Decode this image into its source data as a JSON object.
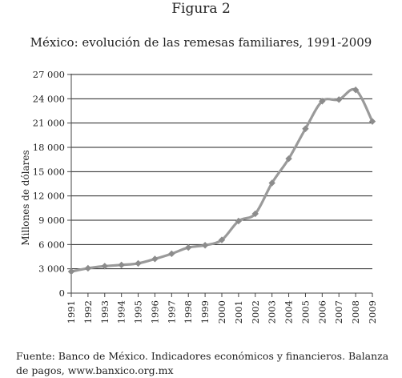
{
  "figure_label": "Figura 2",
  "source": {
    "text": "Fuente: Banco de México. Indicadores económicos y financieros. Balanza de pagos,",
    "url": "www.banxico.org.mx"
  },
  "chart_data": {
    "type": "line",
    "title": "México: evolución de las remesas familiares, 1991-2009",
    "xlabel": "",
    "ylabel": "Millones de dólares",
    "x": [
      "1991",
      "1992",
      "1993",
      "1994",
      "1995",
      "1996",
      "1997",
      "1998",
      "1999",
      "2000",
      "2001",
      "2002",
      "2003",
      "2004",
      "2005",
      "2006",
      "2007",
      "2008",
      "2009"
    ],
    "y_ticks": [
      "0",
      "3 000",
      "6 000",
      "9 000",
      "12 000",
      "15 000",
      "18 000",
      "21 000",
      "24 000",
      "27 000"
    ],
    "ylim": [
      0,
      27000
    ],
    "grid": true,
    "series": [
      {
        "values": [
          2660,
          3070,
          3330,
          3480,
          3670,
          4220,
          4860,
          5630,
          5910,
          6570,
          8900,
          9800,
          13600,
          16600,
          20300,
          23700,
          23900,
          25100,
          21200
        ]
      }
    ],
    "colors": {
      "line": "#9a9a9a",
      "marker": "#8c8c8c",
      "axis": "#444444",
      "grid": "#222222"
    }
  }
}
